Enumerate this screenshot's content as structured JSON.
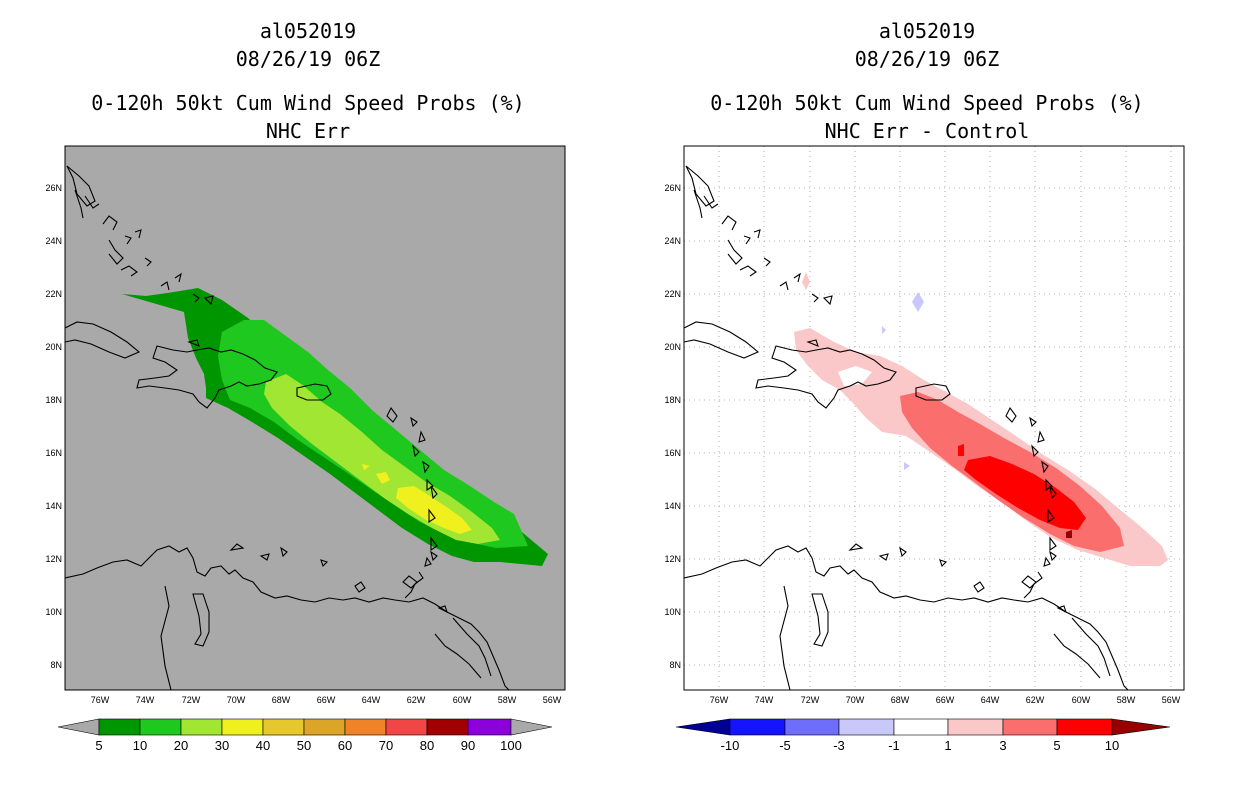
{
  "left": {
    "title1": "al052019",
    "title2": "08/26/19 06Z",
    "title3": "0-120h 50kt Cum Wind Speed Probs (%)",
    "title4": "NHC Err",
    "background_color": "#a9a9a9",
    "colorbar": {
      "colors": [
        "#009600",
        "#1ec81e",
        "#a0e632",
        "#f0f01e",
        "#e6c82d",
        "#dca528",
        "#f08228",
        "#f04646",
        "#a00000",
        "#8c00dc"
      ],
      "labels": [
        "5",
        "10",
        "20",
        "30",
        "40",
        "50",
        "60",
        "70",
        "80",
        "90",
        "100"
      ]
    }
  },
  "right": {
    "title1": "al052019",
    "title2": "08/26/19 06Z",
    "title3": "0-120h 50kt Cum Wind Speed Probs (%)",
    "title4": "NHC Err - Control",
    "background_color": "#ffffff",
    "colorbar": {
      "colors": [
        "#000096",
        "#1414ff",
        "#6e6efa",
        "#c8c8fa",
        "#ffffff",
        "#fac8c8",
        "#fa6e6e",
        "#ff0000",
        "#960000"
      ],
      "labels": [
        "-10",
        "-5",
        "-3",
        "-1",
        "1",
        "3",
        "5",
        "10"
      ]
    }
  },
  "axes": {
    "lon_labels": [
      "76W",
      "74W",
      "72W",
      "70W",
      "68W",
      "66W",
      "64W",
      "62W",
      "60W",
      "58W",
      "56W"
    ],
    "lat_labels": [
      "8N",
      "10N",
      "12N",
      "14N",
      "16N",
      "18N",
      "20N",
      "22N",
      "24N",
      "26N"
    ]
  }
}
